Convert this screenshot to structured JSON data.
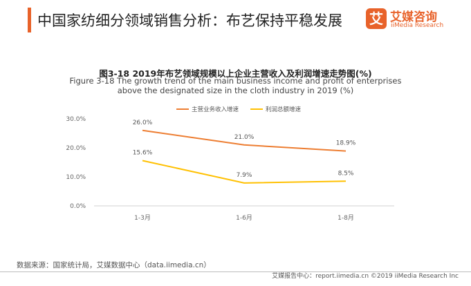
{
  "header": {
    "title": "中国家纺细分领域销售分析：布艺保持平稳发展",
    "logo_mark": "艾",
    "logo_cn": "艾媒咨询",
    "logo_en": "iiMedia Research"
  },
  "chart_data": {
    "type": "line",
    "title": "图3-18 2019年布艺领域规模以上企业主营收入及利润增速走势图(%)",
    "subtitle": "Figure 3-18 The growth trend of the main business income and profit of enterprises above the designated size in the cloth industry in 2019 (%)",
    "categories": [
      "1-3月",
      "1-6月",
      "1-8月"
    ],
    "series": [
      {
        "name": "主营业务收入增速",
        "values": [
          26.0,
          21.0,
          18.9
        ],
        "labels": [
          "26.0%",
          "21.0%",
          "18.9%"
        ],
        "color": "#ed7d31"
      },
      {
        "name": "利润总额增速",
        "values": [
          15.6,
          7.9,
          8.5
        ],
        "labels": [
          "15.6%",
          "7.9%",
          "8.5%"
        ],
        "color": "#ffc000"
      }
    ],
    "yticks": [
      "0.0%",
      "10.0%",
      "20.0%",
      "30.0%"
    ],
    "ylim": [
      0,
      30
    ],
    "grid": false,
    "legend": "top"
  },
  "footer": {
    "source": "数据来源：国家统计局，艾媒数据中心（data.iimedia.cn）",
    "copyright": "艾媒报告中心：report.iimedia.cn ©2019 iiMedia Research Inc"
  }
}
